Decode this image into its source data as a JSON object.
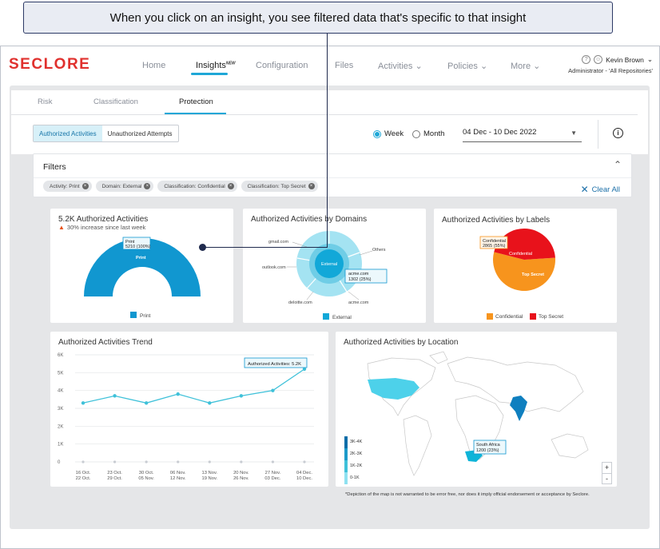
{
  "callout": {
    "text": "When you click on an insight, you see filtered data that's specific to that insight"
  },
  "brand": {
    "logo": "SECLORE",
    "accent": "#1ea7d7",
    "brand_red": "#e0312e"
  },
  "nav": {
    "items": [
      {
        "label": "Home"
      },
      {
        "label": "Insights",
        "badge": "NEW"
      },
      {
        "label": "Configuration"
      },
      {
        "label": "Files"
      },
      {
        "label": "Activities"
      },
      {
        "label": "Policies"
      },
      {
        "label": "More"
      }
    ],
    "active": "Insights"
  },
  "user": {
    "name": "Kevin Brown",
    "role": "Administrator - 'All Repositories'"
  },
  "subtabs": [
    {
      "label": "Risk"
    },
    {
      "label": "Classification"
    },
    {
      "label": "Protection"
    }
  ],
  "segments": {
    "authorized": "Authorized Activities",
    "unauthorized": "Unauthorized Attempts"
  },
  "period": {
    "week": "Week",
    "month": "Month",
    "selected": "Week",
    "range": "04 Dec - 10 Dec 2022"
  },
  "filters": {
    "title": "Filters",
    "chips": [
      {
        "label": "Activity: Print"
      },
      {
        "label": "Domain: External"
      },
      {
        "label": "Classification: Confidential"
      },
      {
        "label": "Classification: Top Secret"
      }
    ],
    "clear_label": "Clear All"
  },
  "cards": {
    "authorized": {
      "title": "5.2K Authorized Activities",
      "change": "30% increase since last week",
      "tooltip_label": "Print",
      "tooltip_value": "5210 (100%)",
      "inner_label": "Print",
      "legend": "Print"
    },
    "domains": {
      "title": "Authorized Activities by Domains",
      "center": "External",
      "outer_labels": [
        "gmail.com",
        "Others",
        "outlook.com",
        "deloitte.com",
        "acme.com"
      ],
      "tooltip_label": "acme.com",
      "tooltip_value": "1302 (25%)",
      "legend": "External"
    },
    "labels": {
      "title": "Authorized Activities by Labels",
      "tooltip_label": "Confidential",
      "tooltip_value": "2865 (55%)",
      "slice_labels": [
        "Confidential",
        "Top Secret"
      ],
      "legend": [
        "Confidential",
        "Top Secret"
      ]
    },
    "trend": {
      "title": "Authorized Activities Trend",
      "tooltip": "Authorized Activities: 5.2K"
    },
    "location": {
      "title": "Authorized Activities by Location",
      "tooltip_label": "South Africa",
      "tooltip_value": "1200 (23%)",
      "legend": [
        "3K-4K",
        "2K-3K",
        "1K-2K",
        "0-1K"
      ],
      "zoom_in": "+",
      "zoom_out": "-"
    }
  },
  "map_note": "*Depiction of the map is not warranted to be error free, nor does it imply official endorsement or acceptance by Seclore.",
  "chart_data": [
    {
      "type": "pie",
      "title": "5.2K Authorized Activities",
      "categories": [
        "Print"
      ],
      "values": [
        5210
      ]
    },
    {
      "type": "pie",
      "title": "Authorized Activities by Domains",
      "categories": [
        "External"
      ],
      "values": [
        100
      ],
      "outer_categories": [
        "gmail.com",
        "Others",
        "acme.com",
        "deloitte.com",
        "outlook.com"
      ],
      "outer_values": [
        15,
        15,
        25,
        20,
        25
      ]
    },
    {
      "type": "pie",
      "title": "Authorized Activities by Labels",
      "categories": [
        "Confidential",
        "Top Secret"
      ],
      "values": [
        2865,
        2345
      ],
      "colors": [
        "#f7941d",
        "#e8121b"
      ]
    },
    {
      "type": "line",
      "title": "Authorized Activities Trend",
      "categories": [
        "16 Oct.\n22 Oct.",
        "23 Oct.\n29 Oct.",
        "30 Oct.\n05 Nov.",
        "06 Nov.\n12 Nov.",
        "13 Nov.\n19 Nov.",
        "20 Nov.\n26 Nov.",
        "27 Nov.\n03 Dec.",
        "04 Dec.\n10 Dec."
      ],
      "values": [
        3300,
        3700,
        3300,
        3800,
        3300,
        3700,
        4000,
        5200
      ],
      "yticks": [
        "0",
        "1K",
        "2K",
        "3K",
        "4K",
        "5K",
        "6K"
      ],
      "ylim": [
        0,
        6000
      ],
      "grid": true
    }
  ]
}
